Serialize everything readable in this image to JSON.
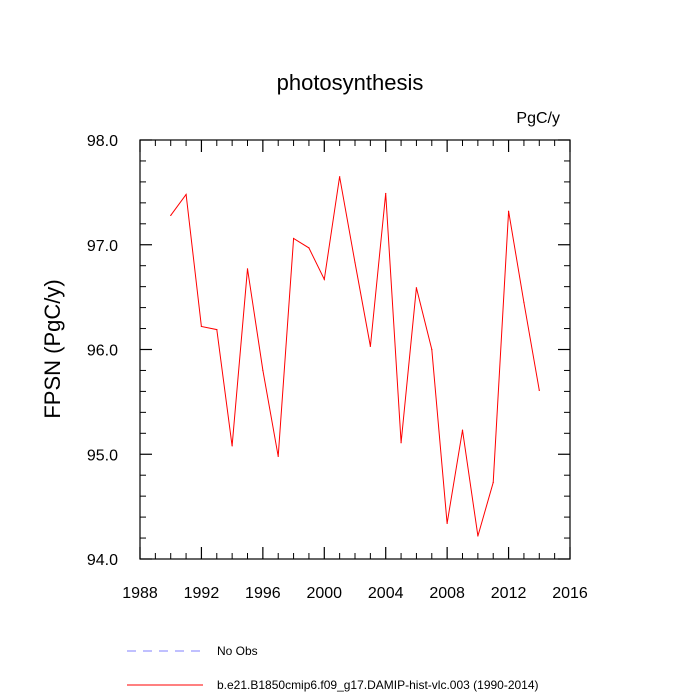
{
  "chart_data": {
    "type": "line",
    "title": "photosynthesis",
    "units": "PgC/y",
    "ylabel": "FPSN  (PgC/y)",
    "xlabel": "",
    "xlim": [
      1988,
      2016
    ],
    "ylim": [
      94.0,
      98.0
    ],
    "xticks": [
      1988,
      1992,
      1996,
      2000,
      2004,
      2008,
      2012,
      2016
    ],
    "yticks": [
      94.0,
      95.0,
      96.0,
      97.0,
      98.0
    ],
    "ytick_labels": [
      "94.0",
      "95.0",
      "96.0",
      "97.0",
      "98.0"
    ],
    "grid": false,
    "legend_position": "bottom",
    "series": [
      {
        "name": "b.e21.B1850cmip6.f09_g17.DAMIP-hist-vlc.003 (1990-2014)",
        "color": "#ff0000",
        "dash": "solid",
        "x": [
          1990,
          1991,
          1992,
          1993,
          1994,
          1995,
          1996,
          1997,
          1998,
          1999,
          2000,
          2001,
          2002,
          2003,
          2004,
          2005,
          2006,
          2007,
          2008,
          2009,
          2010,
          2011,
          2012,
          2013,
          2014
        ],
        "values": [
          97.28,
          97.48,
          96.22,
          96.19,
          95.08,
          96.77,
          95.8,
          94.98,
          97.06,
          96.97,
          96.67,
          97.65,
          96.83,
          96.03,
          97.49,
          95.11,
          96.59,
          96.0,
          94.34,
          95.23,
          94.22,
          94.73,
          97.32,
          96.45,
          95.61
        ]
      }
    ],
    "legend": [
      {
        "label": "No Obs",
        "color": "#8080ff",
        "dash": "dashed"
      },
      {
        "label": "b.e21.B1850cmip6.f09_g17.DAMIP-hist-vlc.003 (1990-2014)",
        "color": "#ff0000",
        "dash": "solid"
      }
    ]
  }
}
